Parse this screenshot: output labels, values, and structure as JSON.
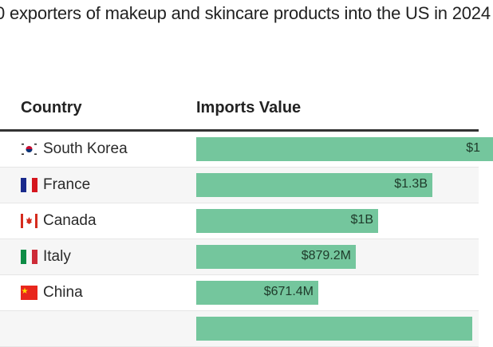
{
  "title": "0 exporters of makeup and skincare products into the US in 2024",
  "chart_data": {
    "type": "bar",
    "orientation": "horizontal",
    "columns": [
      "Country",
      "Imports Value"
    ],
    "categories": [
      "South Korea",
      "France",
      "Canada",
      "Italy",
      "China",
      ""
    ],
    "values": [
      null,
      1300000000,
      1000000000,
      879200000,
      671400000,
      null
    ],
    "labels": [
      "$1",
      "$1.3B",
      "$1B",
      "$879.2M",
      "$671.4M",
      ""
    ],
    "flags": [
      "flag-south-korea-icon",
      "flag-france-icon",
      "flag-canada-icon",
      "flag-italy-icon",
      "flag-china-icon",
      ""
    ],
    "bar_color": "#74c69d"
  }
}
